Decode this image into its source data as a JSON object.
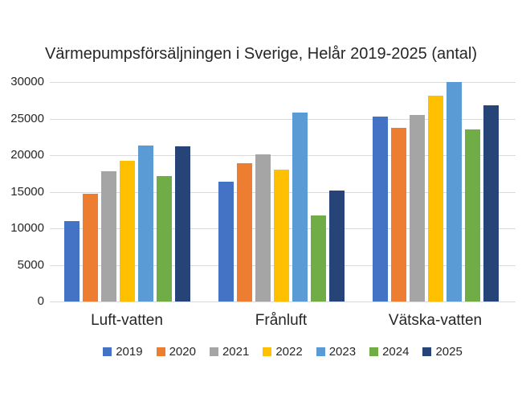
{
  "chart_data": {
    "type": "bar",
    "title": "Värmepumpsförsäljningen i Sverige, Helår 2019-2025 (antal)",
    "categories": [
      "Luft-vatten",
      "Frånluft",
      "Vätska-vatten"
    ],
    "series": [
      {
        "name": "2019",
        "color": "#4472C4",
        "values": [
          11000,
          16400,
          25300
        ]
      },
      {
        "name": "2020",
        "color": "#ED7D31",
        "values": [
          14700,
          18900,
          23700
        ]
      },
      {
        "name": "2021",
        "color": "#A5A5A5",
        "values": [
          17800,
          20100,
          25500
        ]
      },
      {
        "name": "2022",
        "color": "#FFC000",
        "values": [
          19200,
          18000,
          28100
        ]
      },
      {
        "name": "2023",
        "color": "#5B9BD5",
        "values": [
          21300,
          25800,
          30000
        ]
      },
      {
        "name": "2024",
        "color": "#70AD47",
        "values": [
          17100,
          11800,
          23500
        ]
      },
      {
        "name": "2025",
        "color": "#264478",
        "values": [
          21200,
          15200,
          26800
        ]
      }
    ],
    "ylim": [
      0,
      30000
    ],
    "yticks": [
      0,
      5000,
      10000,
      15000,
      20000,
      25000,
      30000
    ],
    "xlabel": "",
    "ylabel": "",
    "grid": true,
    "legend_position": "bottom",
    "gridline_color": "#d9d9d9",
    "text_color": "#262626"
  }
}
